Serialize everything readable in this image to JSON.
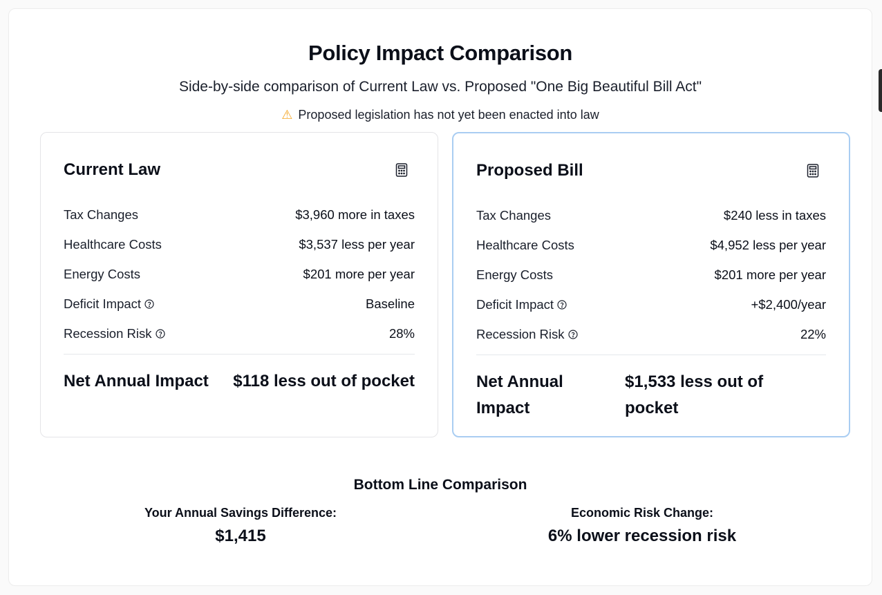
{
  "header": {
    "title": "Policy Impact Comparison",
    "subtitle": "Side-by-side comparison of Current Law vs. Proposed \"One Big Beautiful Bill Act\"",
    "warning": "Proposed legislation has not yet been enacted into law",
    "warning_icon": "warning-icon"
  },
  "current_law": {
    "title": "Current Law",
    "icon": "calculator-icon",
    "rows": [
      {
        "label": "Tax Changes",
        "value": "$3,960 more in taxes"
      },
      {
        "label": "Healthcare Costs",
        "value": "$3,537 less per year"
      },
      {
        "label": "Energy Costs",
        "value": "$201 more per year"
      },
      {
        "label": "Deficit Impact",
        "value": "Baseline"
      },
      {
        "label": "Recession Risk",
        "value": "28%"
      }
    ],
    "net_label": "Net Annual Impact",
    "net_value": "$118 less out of pocket"
  },
  "proposed_bill": {
    "title": "Proposed Bill",
    "icon": "calculator-icon",
    "rows": [
      {
        "label": "Tax Changes",
        "value": "$240 less in taxes"
      },
      {
        "label": "Healthcare Costs",
        "value": "$4,952 less per year"
      },
      {
        "label": "Energy Costs",
        "value": "$201 more per year"
      },
      {
        "label": "Deficit Impact",
        "value": "+$2,400/year"
      },
      {
        "label": "Recession Risk",
        "value": "22%"
      }
    ],
    "net_label": "Net Annual Impact",
    "net_value": "$1,533 less out of pocket"
  },
  "bottom_line": {
    "title": "Bottom Line Comparison",
    "savings_label": "Your Annual Savings Difference:",
    "savings_value": "$1,415",
    "risk_label": "Economic Risk Change:",
    "risk_value": "6% lower recession risk"
  },
  "colors": {
    "accent_border": "#a9cdf2",
    "warning": "#f5a623"
  }
}
